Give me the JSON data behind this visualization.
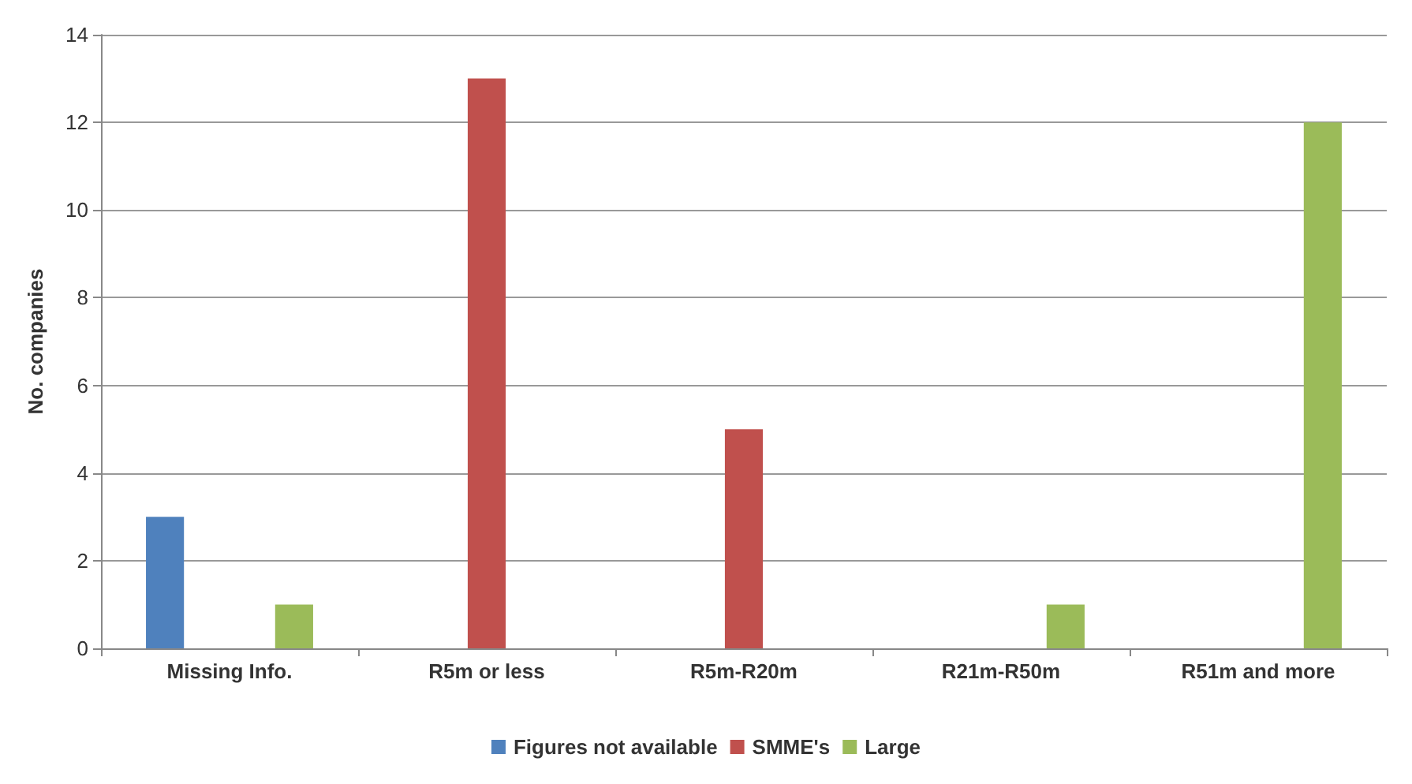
{
  "chart_data": {
    "type": "bar",
    "ylabel": "No. companies",
    "categories": [
      "Missing Info.",
      "R5m or less",
      "R5m-R20m",
      "R21m-R50m",
      "R51m and more"
    ],
    "series": [
      {
        "name": "Figures not available",
        "color": "#4f81bd",
        "values": [
          3,
          0,
          0,
          0,
          0
        ]
      },
      {
        "name": "SMME's",
        "color": "#c0504d",
        "values": [
          0,
          13,
          5,
          0,
          0
        ]
      },
      {
        "name": "Large",
        "color": "#9bbb59",
        "values": [
          1,
          0,
          0,
          1,
          12
        ]
      }
    ],
    "ylim": [
      0,
      14
    ],
    "yticks": [
      0,
      2,
      4,
      6,
      8,
      10,
      12,
      14
    ],
    "grid": "y",
    "legend": "bottom"
  }
}
